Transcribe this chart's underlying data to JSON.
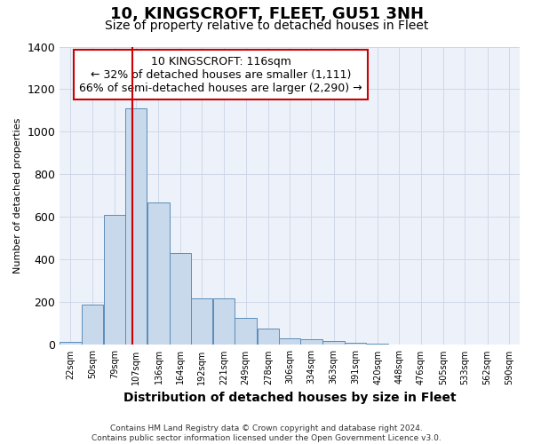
{
  "title": "10, KINGSCROFT, FLEET, GU51 3NH",
  "subtitle": "Size of property relative to detached houses in Fleet",
  "xlabel": "Distribution of detached houses by size in Fleet",
  "ylabel": "Number of detached properties",
  "footer_line1": "Contains HM Land Registry data © Crown copyright and database right 2024.",
  "footer_line2": "Contains public sector information licensed under the Open Government Licence v3.0.",
  "annotation_line1": "10 KINGSCROFT: 116sqm",
  "annotation_line2": "← 32% of detached houses are smaller (1,111)",
  "annotation_line3": "66% of semi-detached houses are larger (2,290) →",
  "bar_color": "#c9d9ec",
  "bar_edge_color": "#5b8db8",
  "vline_color": "#cc0000",
  "vline_x": 116,
  "annotation_box_edge": "#cc0000",
  "categories": [
    22,
    50,
    79,
    107,
    136,
    164,
    192,
    221,
    249,
    278,
    306,
    334,
    363,
    391,
    420,
    448,
    476,
    505,
    533,
    562,
    590
  ],
  "bin_width": 28,
  "values": [
    13,
    190,
    612,
    1110,
    670,
    430,
    220,
    220,
    125,
    75,
    30,
    25,
    20,
    10,
    4,
    2,
    2,
    1,
    1,
    0,
    0
  ],
  "ylim": [
    0,
    1400
  ],
  "yticks": [
    0,
    200,
    400,
    600,
    800,
    1000,
    1200,
    1400
  ],
  "grid_color": "#d0d8e8",
  "background_color": "#edf2fa",
  "fig_background": "#ffffff",
  "title_fontsize": 13,
  "subtitle_fontsize": 10,
  "ylabel_fontsize": 8,
  "xlabel_fontsize": 10,
  "ytick_fontsize": 9,
  "xtick_fontsize": 7,
  "footer_fontsize": 6.5,
  "annotation_fontsize": 9
}
